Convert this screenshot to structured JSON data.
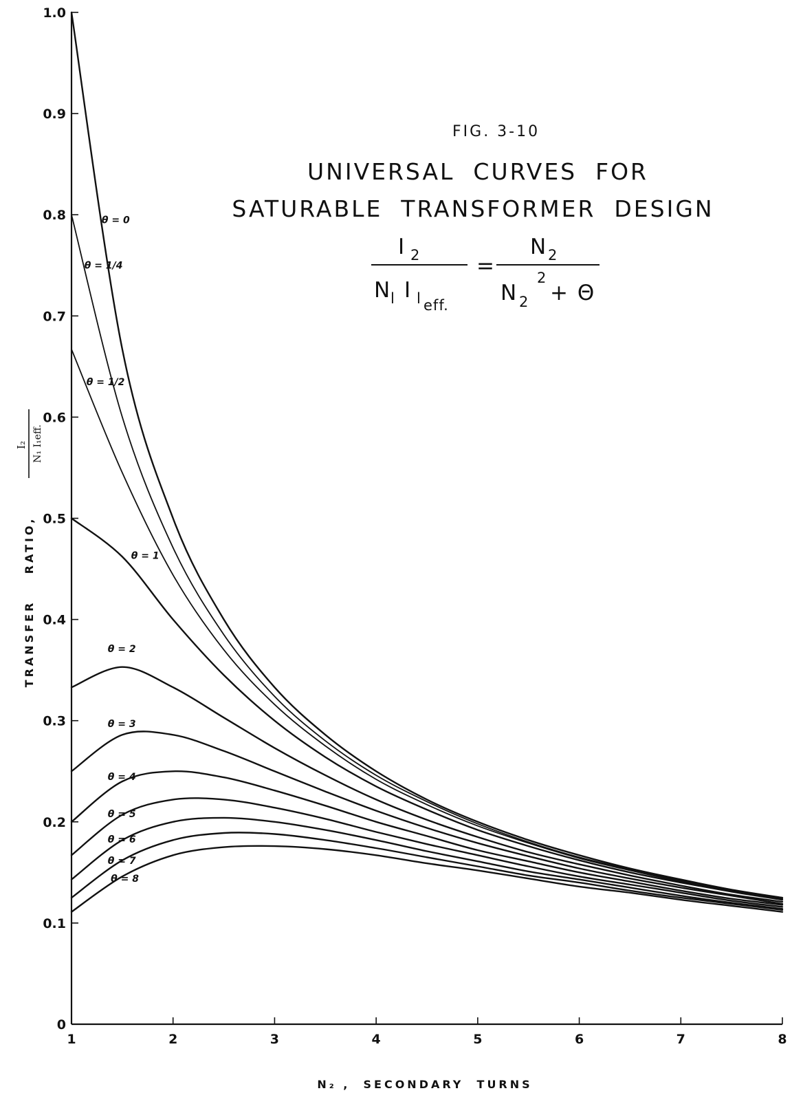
{
  "chart_data": {
    "type": "line",
    "figure_number": "FIG. 3-10",
    "title_line1": "UNIVERSAL  CURVES  FOR",
    "title_line2": "SATURABLE  TRANSFORMER  DESIGN",
    "formula": {
      "lhs_numerator": "I",
      "lhs_numerator_sub": "2",
      "lhs_denominator": "N",
      "lhs_denominator_sub": "l",
      "lhs_denominator_2": "I",
      "lhs_denominator_2_sub": "l",
      "lhs_denominator_2_subsub": "eff.",
      "equals": "=",
      "rhs_numerator": "N",
      "rhs_numerator_sub": "2",
      "rhs_denominator": "N",
      "rhs_denominator_sub": "2",
      "rhs_denominator_sup": "2",
      "rhs_denominator_tail": "+ Θ"
    },
    "xlabel": "N₂ ,  SECONDARY  TURNS",
    "ylabel": "TRANSFER    RATIO,",
    "ylabel_fraction": {
      "numerator": "I₂",
      "denominator": "N₁ I₁eff."
    },
    "xlim": [
      1,
      8
    ],
    "ylim": [
      0,
      1.0
    ],
    "x_ticks": [
      "1",
      "2",
      "3",
      "4",
      "5",
      "6",
      "7",
      "8"
    ],
    "y_ticks": [
      "0",
      "0.1",
      "0.2",
      "0.3",
      "0.4",
      "0.5",
      "0.6",
      "0.7",
      "0.8",
      "0.9",
      "1.0"
    ],
    "grid": false,
    "legend": "none",
    "x": [
      1,
      1.5,
      2,
      2.5,
      3,
      3.5,
      4,
      4.5,
      5,
      5.5,
      6,
      6.5,
      7,
      7.5,
      8
    ],
    "series": [
      {
        "label": "θ = 0",
        "theta": 0,
        "values": [
          1.0,
          0.667,
          0.5,
          0.4,
          0.333,
          0.286,
          0.25,
          0.222,
          0.2,
          0.182,
          0.167,
          0.154,
          0.143,
          0.133,
          0.125
        ]
      },
      {
        "label": "θ = 1/4",
        "theta": 0.25,
        "values": [
          0.8,
          0.6,
          0.471,
          0.385,
          0.324,
          0.28,
          0.246,
          0.22,
          0.198,
          0.18,
          0.165,
          0.153,
          0.142,
          0.133,
          0.124
        ]
      },
      {
        "label": "θ = 1/2",
        "theta": 0.5,
        "values": [
          0.667,
          0.545,
          0.444,
          0.37,
          0.316,
          0.275,
          0.242,
          0.217,
          0.196,
          0.179,
          0.164,
          0.152,
          0.141,
          0.132,
          0.124
        ]
      },
      {
        "label": "θ = 1",
        "theta": 1,
        "values": [
          0.5,
          0.462,
          0.4,
          0.345,
          0.3,
          0.264,
          0.235,
          0.212,
          0.192,
          0.176,
          0.162,
          0.15,
          0.14,
          0.131,
          0.123
        ]
      },
      {
        "label": "θ = 2",
        "theta": 2,
        "values": [
          0.333,
          0.353,
          0.333,
          0.303,
          0.273,
          0.246,
          0.222,
          0.202,
          0.185,
          0.17,
          0.158,
          0.147,
          0.137,
          0.128,
          0.121
        ]
      },
      {
        "label": "θ = 3",
        "theta": 3,
        "values": [
          0.25,
          0.286,
          0.286,
          0.27,
          0.25,
          0.23,
          0.211,
          0.194,
          0.179,
          0.166,
          0.154,
          0.144,
          0.135,
          0.127,
          0.119
        ]
      },
      {
        "label": "θ = 4",
        "theta": 4,
        "values": [
          0.2,
          0.24,
          0.25,
          0.244,
          0.231,
          0.216,
          0.2,
          0.186,
          0.172,
          0.161,
          0.15,
          0.141,
          0.132,
          0.124,
          0.118
        ]
      },
      {
        "label": "θ = 5",
        "theta": 5,
        "values": [
          0.167,
          0.207,
          0.222,
          0.222,
          0.214,
          0.203,
          0.19,
          0.178,
          0.167,
          0.156,
          0.146,
          0.138,
          0.13,
          0.122,
          0.116
        ]
      },
      {
        "label": "θ = 6",
        "theta": 6,
        "values": [
          0.143,
          0.182,
          0.2,
          0.204,
          0.2,
          0.192,
          0.182,
          0.171,
          0.161,
          0.151,
          0.143,
          0.135,
          0.127,
          0.12,
          0.114
        ]
      },
      {
        "label": "θ = 7",
        "theta": 7,
        "values": [
          0.125,
          0.162,
          0.182,
          0.189,
          0.188,
          0.182,
          0.174,
          0.165,
          0.156,
          0.147,
          0.14,
          0.132,
          0.125,
          0.119,
          0.113
        ]
      },
      {
        "label": "θ = 8",
        "theta": 8,
        "values": [
          0.111,
          0.146,
          0.167,
          0.175,
          0.176,
          0.173,
          0.167,
          0.159,
          0.152,
          0.144,
          0.136,
          0.13,
          0.123,
          0.117,
          0.111
        ]
      }
    ]
  }
}
